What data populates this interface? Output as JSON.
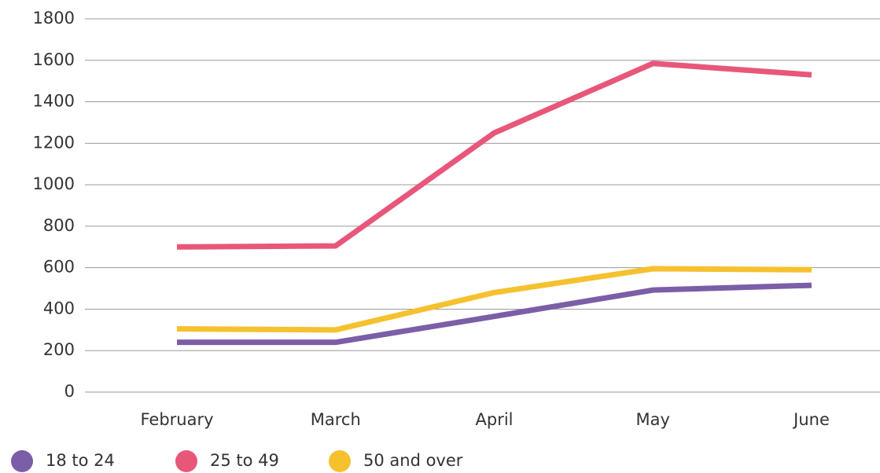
{
  "chart_data": {
    "type": "line",
    "categories": [
      "February",
      "March",
      "April",
      "May",
      "June"
    ],
    "series": [
      {
        "name": "18 to 24",
        "color": "#7b5ea7",
        "values": [
          240,
          240,
          365,
          492,
          515
        ]
      },
      {
        "name": "25 to 49",
        "color": "#e8577a",
        "values": [
          700,
          705,
          1250,
          1585,
          1530
        ]
      },
      {
        "name": "50 and over",
        "color": "#f5c12e",
        "values": [
          305,
          300,
          480,
          595,
          590
        ]
      }
    ],
    "ylim": [
      0,
      1800
    ],
    "yticks": [
      0,
      200,
      400,
      600,
      800,
      1000,
      1200,
      1400,
      1600,
      1800
    ],
    "grid": true,
    "legend": "bottom"
  }
}
